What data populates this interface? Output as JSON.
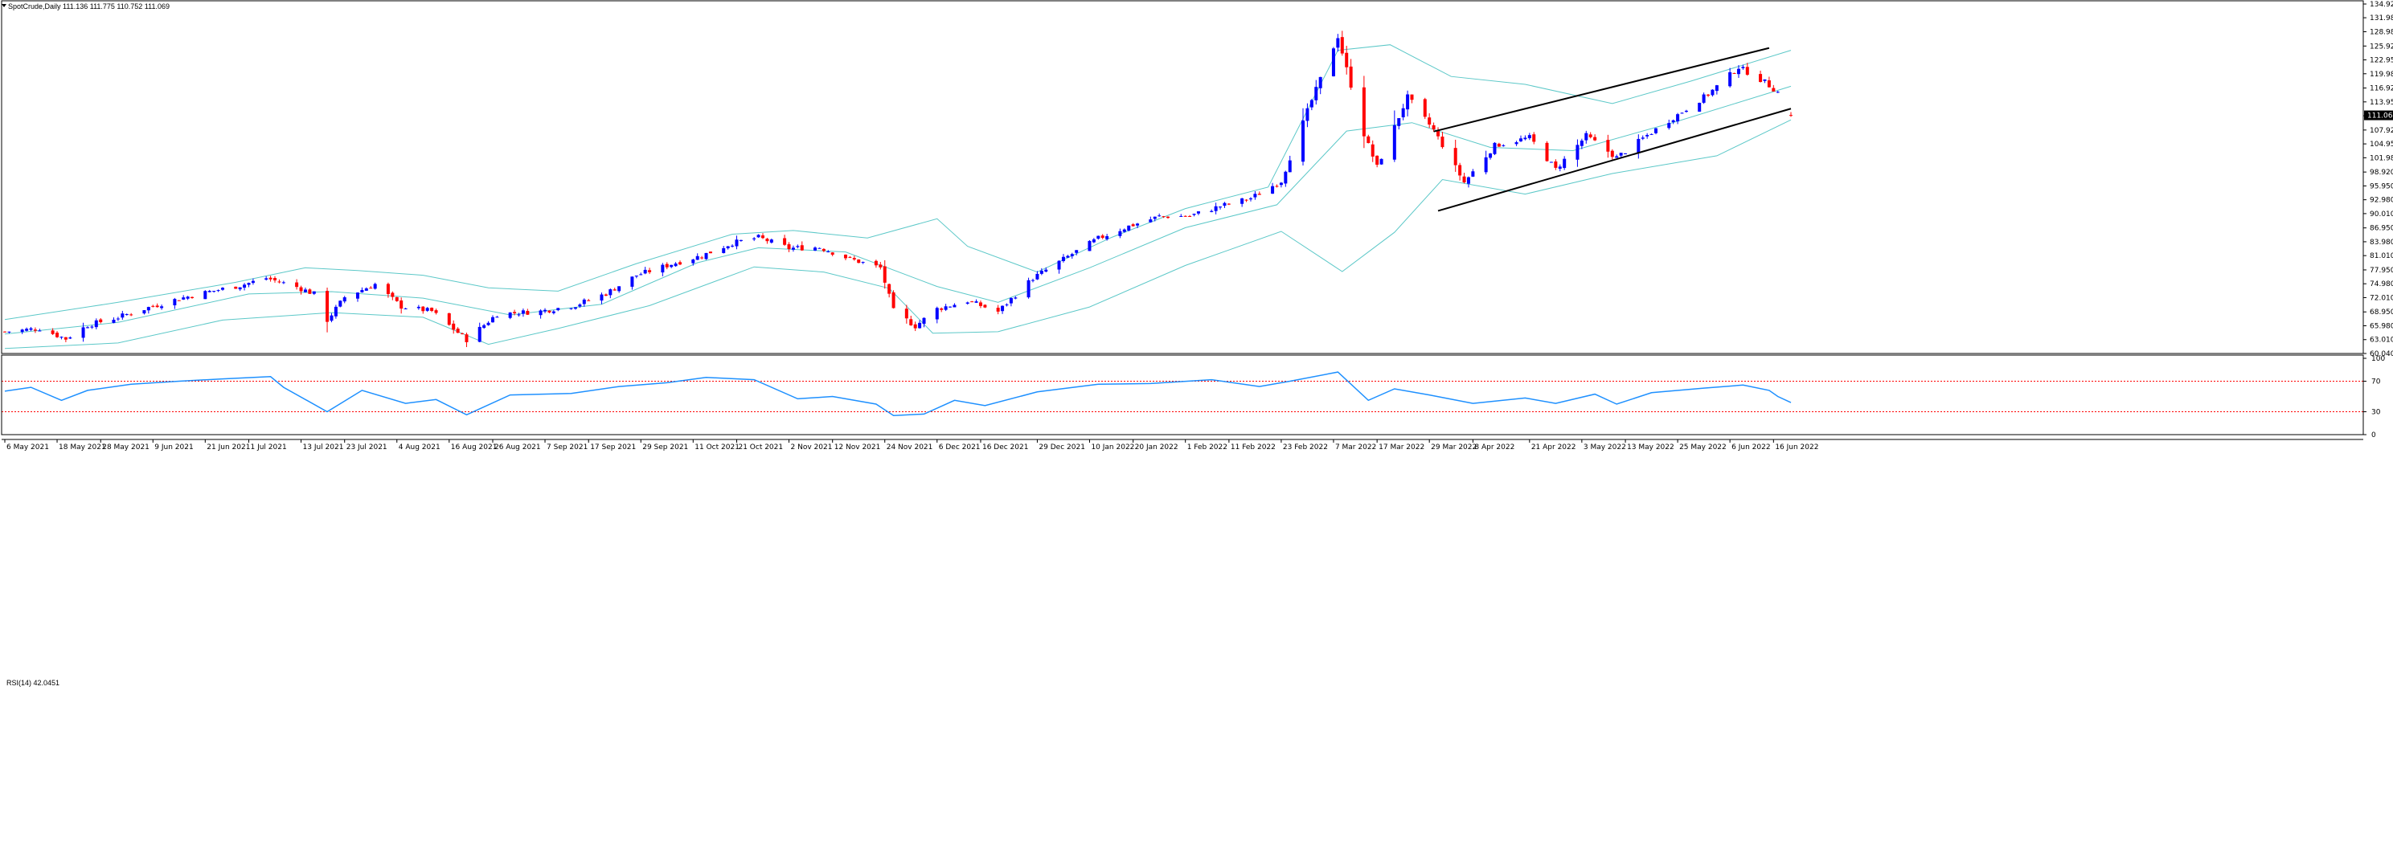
{
  "window": {
    "main_header": "SpotCrude,Daily  111.136 111.775 110.752 111.069",
    "rsi_header": "RSI(14) 42.0451"
  },
  "colors": {
    "bull_candle": "#0000ff",
    "bear_candle": "#ff0000",
    "bollinger": "#5cc8c8",
    "rsi_line": "#1e90ff",
    "rsi_levels": "#ff0000",
    "channel": "#000000",
    "current_price_tag": "#000000"
  },
  "chart_data": [
    {
      "type": "candlestick",
      "symbol": "SpotCrude",
      "timeframe": "Daily",
      "ohlc_last": {
        "open": 111.136,
        "high": 111.775,
        "low": 110.752,
        "close": 111.069
      },
      "current_price_label": "111.069",
      "y_axis": {
        "ylim": [
          60.04,
          134.92
        ],
        "tick_labels": [
          "134.920",
          "131.980",
          "128.980",
          "125.920",
          "122.950",
          "119.980",
          "116.920",
          "113.950",
          "110.980",
          "107.920",
          "104.950",
          "101.980",
          "98.920",
          "95.950",
          "92.980",
          "90.010",
          "86.950",
          "83.980",
          "81.010",
          "77.950",
          "74.980",
          "72.010",
          "68.950",
          "65.980",
          "63.010",
          "60.040"
        ],
        "ticks": [
          134.92,
          131.98,
          128.98,
          125.92,
          122.95,
          119.98,
          116.92,
          113.95,
          110.98,
          107.92,
          104.95,
          101.98,
          98.92,
          95.95,
          92.98,
          90.01,
          86.95,
          83.98,
          81.01,
          77.95,
          74.98,
          72.01,
          68.95,
          65.98,
          63.01,
          60.04
        ]
      },
      "x_axis": {
        "date_range": [
          "2021-05-06",
          "2022-06-20"
        ],
        "tick_dates": [
          "2021-05-06",
          "2021-05-18",
          "2021-05-28",
          "2021-06-09",
          "2021-06-21",
          "2021-07-01",
          "2021-07-13",
          "2021-07-23",
          "2021-08-04",
          "2021-08-16",
          "2021-08-26",
          "2021-09-07",
          "2021-09-17",
          "2021-09-29",
          "2021-10-11",
          "2021-10-21",
          "2021-11-02",
          "2021-11-12",
          "2021-11-24",
          "2021-12-06",
          "2021-12-16",
          "2021-12-29",
          "2022-01-10",
          "2022-01-20",
          "2022-02-01",
          "2022-02-11",
          "2022-02-23",
          "2022-03-07",
          "2022-03-17",
          "2022-03-29",
          "2022-04-08",
          "2022-04-21",
          "2022-05-03",
          "2022-05-13",
          "2022-05-25",
          "2022-06-06",
          "2022-06-16"
        ],
        "tick_labels": [
          "6 May 2021",
          "18 May 2021",
          "28 May 2021",
          "9 Jun 2021",
          "21 Jun 2021",
          "1 Jul 2021",
          "13 Jul 2021",
          "23 Jul 2021",
          "4 Aug 2021",
          "16 Aug 2021",
          "26 Aug 2021",
          "7 Sep 2021",
          "17 Sep 2021",
          "29 Sep 2021",
          "11 Oct 2021",
          "21 Oct 2021",
          "2 Nov 2021",
          "12 Nov 2021",
          "24 Nov 2021",
          "6 Dec 2021",
          "16 Dec 2021",
          "29 Dec 2021",
          "10 Jan 2022",
          "20 Jan 2022",
          "1 Feb 2022",
          "11 Feb 2022",
          "23 Feb 2022",
          "7 Mar 2022",
          "17 Mar 2022",
          "29 Mar 2022",
          "8 Apr 2022",
          "21 Apr 2022",
          "3 May 2022",
          "13 May 2022",
          "25 May 2022",
          "6 Jun 2022",
          "16 Jun 2022"
        ]
      },
      "close_path": [
        {
          "date": "2021-05-06",
          "close": 64.7
        },
        {
          "date": "2021-05-14",
          "close": 65.4
        },
        {
          "date": "2021-05-20",
          "close": 63.2
        },
        {
          "date": "2021-05-25",
          "close": 66.1
        },
        {
          "date": "2021-06-01",
          "close": 67.8
        },
        {
          "date": "2021-06-08",
          "close": 69.9
        },
        {
          "date": "2021-06-15",
          "close": 71.8
        },
        {
          "date": "2021-06-22",
          "close": 73.3
        },
        {
          "date": "2021-06-29",
          "close": 74.6
        },
        {
          "date": "2021-07-05",
          "close": 76.2
        },
        {
          "date": "2021-07-12",
          "close": 74.3
        },
        {
          "date": "2021-07-16",
          "close": 72.8
        },
        {
          "date": "2021-07-19",
          "close": 67.2
        },
        {
          "date": "2021-07-23",
          "close": 72.1
        },
        {
          "date": "2021-07-30",
          "close": 74.9
        },
        {
          "date": "2021-08-05",
          "close": 70.1
        },
        {
          "date": "2021-08-12",
          "close": 69.1
        },
        {
          "date": "2021-08-20",
          "close": 63.0
        },
        {
          "date": "2021-08-27",
          "close": 68.5
        },
        {
          "date": "2021-09-06",
          "close": 69.1
        },
        {
          "date": "2021-09-14",
          "close": 70.4
        },
        {
          "date": "2021-09-21",
          "close": 72.9
        },
        {
          "date": "2021-09-28",
          "close": 76.8
        },
        {
          "date": "2021-10-06",
          "close": 79.2
        },
        {
          "date": "2021-10-13",
          "close": 81.0
        },
        {
          "date": "2021-10-20",
          "close": 83.7
        },
        {
          "date": "2021-10-26",
          "close": 84.9
        },
        {
          "date": "2021-11-02",
          "close": 82.6
        },
        {
          "date": "2021-11-09",
          "close": 82.8
        },
        {
          "date": "2021-11-16",
          "close": 80.3
        },
        {
          "date": "2021-11-23",
          "close": 78.4
        },
        {
          "date": "2021-11-26",
          "close": 69.2
        },
        {
          "date": "2021-12-01",
          "close": 65.9
        },
        {
          "date": "2021-12-06",
          "close": 69.6
        },
        {
          "date": "2021-12-13",
          "close": 71.3
        },
        {
          "date": "2021-12-20",
          "close": 69.0
        },
        {
          "date": "2021-12-28",
          "close": 76.2
        },
        {
          "date": "2022-01-05",
          "close": 80.8
        },
        {
          "date": "2022-01-12",
          "close": 84.7
        },
        {
          "date": "2022-01-19",
          "close": 87.3
        },
        {
          "date": "2022-01-26",
          "close": 89.4
        },
        {
          "date": "2022-02-02",
          "close": 89.5
        },
        {
          "date": "2022-02-09",
          "close": 91.6
        },
        {
          "date": "2022-02-16",
          "close": 93.3
        },
        {
          "date": "2022-02-23",
          "close": 97.0
        },
        {
          "date": "2022-03-01",
          "close": 112.0
        },
        {
          "date": "2022-03-08",
          "close": 128.0
        },
        {
          "date": "2022-03-14",
          "close": 107.0
        },
        {
          "date": "2022-03-17",
          "close": 100.0
        },
        {
          "date": "2022-03-24",
          "close": 115.0
        },
        {
          "date": "2022-03-30",
          "close": 107.9
        },
        {
          "date": "2022-04-06",
          "close": 96.7
        },
        {
          "date": "2022-04-13",
          "close": 104.6
        },
        {
          "date": "2022-04-21",
          "close": 106.3
        },
        {
          "date": "2022-04-27",
          "close": 99.5
        },
        {
          "date": "2022-05-04",
          "close": 106.7
        },
        {
          "date": "2022-05-11",
          "close": 102.0
        },
        {
          "date": "2022-05-18",
          "close": 106.8
        },
        {
          "date": "2022-05-25",
          "close": 111.2
        },
        {
          "date": "2022-06-01",
          "close": 115.6
        },
        {
          "date": "2022-06-08",
          "close": 121.4
        },
        {
          "date": "2022-06-14",
          "close": 118.2
        },
        {
          "date": "2022-06-17",
          "close": 116.0
        },
        {
          "date": "2022-06-20",
          "close": 111.1
        }
      ],
      "bollinger_upper": [
        {
          "date": "2021-05-06",
          "value": 67.3
        },
        {
          "date": "2021-06-01",
          "value": 71.0
        },
        {
          "date": "2021-06-28",
          "value": 75.3
        },
        {
          "date": "2021-07-14",
          "value": 78.4
        },
        {
          "date": "2021-07-26",
          "value": 77.8
        },
        {
          "date": "2021-08-10",
          "value": 76.8
        },
        {
          "date": "2021-08-25",
          "value": 74.1
        },
        {
          "date": "2021-09-10",
          "value": 73.4
        },
        {
          "date": "2021-09-28",
          "value": 79.3
        },
        {
          "date": "2021-10-20",
          "value": 85.6
        },
        {
          "date": "2021-11-03",
          "value": 86.4
        },
        {
          "date": "2021-11-20",
          "value": 84.8
        },
        {
          "date": "2021-12-06",
          "value": 88.9
        },
        {
          "date": "2021-12-13",
          "value": 83.0
        },
        {
          "date": "2021-12-29",
          "value": 77.5
        },
        {
          "date": "2022-01-15",
          "value": 84.9
        },
        {
          "date": "2022-02-01",
          "value": 91.1
        },
        {
          "date": "2022-02-20",
          "value": 95.7
        },
        {
          "date": "2022-03-08",
          "value": 125.0
        },
        {
          "date": "2022-03-20",
          "value": 126.2
        },
        {
          "date": "2022-04-03",
          "value": 119.4
        },
        {
          "date": "2022-04-20",
          "value": 117.7
        },
        {
          "date": "2022-05-10",
          "value": 113.6
        },
        {
          "date": "2022-05-28",
          "value": 118.4
        },
        {
          "date": "2022-06-20",
          "value": 125.0
        }
      ],
      "bollinger_middle": [
        {
          "date": "2021-05-06",
          "value": 64.2
        },
        {
          "date": "2021-06-01",
          "value": 66.7
        },
        {
          "date": "2021-07-01",
          "value": 72.8
        },
        {
          "date": "2021-07-20",
          "value": 73.3
        },
        {
          "date": "2021-08-10",
          "value": 71.9
        },
        {
          "date": "2021-08-30",
          "value": 68.3
        },
        {
          "date": "2021-09-20",
          "value": 70.6
        },
        {
          "date": "2021-10-12",
          "value": 79.5
        },
        {
          "date": "2021-10-26",
          "value": 82.7
        },
        {
          "date": "2021-11-15",
          "value": 81.8
        },
        {
          "date": "2021-12-06",
          "value": 74.4
        },
        {
          "date": "2021-12-20",
          "value": 71.0
        },
        {
          "date": "2022-01-10",
          "value": 78.4
        },
        {
          "date": "2022-02-01",
          "value": 87.0
        },
        {
          "date": "2022-02-22",
          "value": 91.9
        },
        {
          "date": "2022-03-10",
          "value": 107.7
        },
        {
          "date": "2022-03-25",
          "value": 109.5
        },
        {
          "date": "2022-04-12",
          "value": 104.2
        },
        {
          "date": "2022-05-01",
          "value": 103.5
        },
        {
          "date": "2022-05-25",
          "value": 109.8
        },
        {
          "date": "2022-06-20",
          "value": 117.3
        }
      ],
      "bollinger_lower": [
        {
          "date": "2021-05-06",
          "value": 61.1
        },
        {
          "date": "2021-06-01",
          "value": 62.3
        },
        {
          "date": "2021-06-25",
          "value": 67.2
        },
        {
          "date": "2021-07-20",
          "value": 68.8
        },
        {
          "date": "2021-08-10",
          "value": 67.8
        },
        {
          "date": "2021-08-25",
          "value": 62.0
        },
        {
          "date": "2021-09-10",
          "value": 65.4
        },
        {
          "date": "2021-10-01",
          "value": 70.3
        },
        {
          "date": "2021-10-25",
          "value": 78.6
        },
        {
          "date": "2021-11-10",
          "value": 77.5
        },
        {
          "date": "2021-11-25",
          "value": 74.0
        },
        {
          "date": "2021-12-05",
          "value": 64.4
        },
        {
          "date": "2021-12-20",
          "value": 64.7
        },
        {
          "date": "2022-01-10",
          "value": 70.0
        },
        {
          "date": "2022-02-01",
          "value": 78.9
        },
        {
          "date": "2022-02-23",
          "value": 86.2
        },
        {
          "date": "2022-03-09",
          "value": 77.6
        },
        {
          "date": "2022-03-21",
          "value": 86.0
        },
        {
          "date": "2022-04-01",
          "value": 97.3
        },
        {
          "date": "2022-04-20",
          "value": 94.2
        },
        {
          "date": "2022-05-10",
          "value": 98.6
        },
        {
          "date": "2022-06-03",
          "value": 102.4
        },
        {
          "date": "2022-06-20",
          "value": 110.1
        }
      ],
      "trend_channel": {
        "upper": [
          {
            "date": "2022-03-30",
            "value": 107.6
          },
          {
            "date": "2022-06-15",
            "value": 125.5
          }
        ],
        "lower": [
          {
            "date": "2022-03-31",
            "value": 90.6
          },
          {
            "date": "2022-06-20",
            "value": 112.5
          }
        ]
      }
    },
    {
      "type": "line",
      "indicator": "RSI(14)",
      "last_value": 42.0451,
      "ylim": [
        0,
        100
      ],
      "tick_labels": [
        "100",
        "70",
        "30",
        "0"
      ],
      "ticks": [
        100,
        70,
        30,
        0
      ],
      "levels": [
        70,
        30
      ],
      "series": [
        {
          "date": "2021-05-06",
          "value": 57
        },
        {
          "date": "2021-05-12",
          "value": 62
        },
        {
          "date": "2021-05-19",
          "value": 45
        },
        {
          "date": "2021-05-25",
          "value": 58
        },
        {
          "date": "2021-06-04",
          "value": 66
        },
        {
          "date": "2021-06-15",
          "value": 70
        },
        {
          "date": "2021-06-25",
          "value": 73
        },
        {
          "date": "2021-07-06",
          "value": 76
        },
        {
          "date": "2021-07-09",
          "value": 62
        },
        {
          "date": "2021-07-19",
          "value": 30
        },
        {
          "date": "2021-07-27",
          "value": 58
        },
        {
          "date": "2021-08-06",
          "value": 41
        },
        {
          "date": "2021-08-13",
          "value": 46
        },
        {
          "date": "2021-08-20",
          "value": 26
        },
        {
          "date": "2021-08-30",
          "value": 52
        },
        {
          "date": "2021-09-13",
          "value": 54
        },
        {
          "date": "2021-09-24",
          "value": 63
        },
        {
          "date": "2021-10-05",
          "value": 68
        },
        {
          "date": "2021-10-14",
          "value": 75
        },
        {
          "date": "2021-10-25",
          "value": 72
        },
        {
          "date": "2021-11-04",
          "value": 47
        },
        {
          "date": "2021-11-12",
          "value": 50
        },
        {
          "date": "2021-11-22",
          "value": 40
        },
        {
          "date": "2021-11-26",
          "value": 25
        },
        {
          "date": "2021-12-03",
          "value": 27
        },
        {
          "date": "2021-12-10",
          "value": 45
        },
        {
          "date": "2021-12-17",
          "value": 38
        },
        {
          "date": "2021-12-29",
          "value": 56
        },
        {
          "date": "2022-01-12",
          "value": 66
        },
        {
          "date": "2022-01-24",
          "value": 67
        },
        {
          "date": "2022-02-07",
          "value": 72
        },
        {
          "date": "2022-02-18",
          "value": 63
        },
        {
          "date": "2022-02-25",
          "value": 70
        },
        {
          "date": "2022-03-08",
          "value": 82
        },
        {
          "date": "2022-03-15",
          "value": 45
        },
        {
          "date": "2022-03-21",
          "value": 60
        },
        {
          "date": "2022-03-29",
          "value": 52
        },
        {
          "date": "2022-04-08",
          "value": 41
        },
        {
          "date": "2022-04-20",
          "value": 48
        },
        {
          "date": "2022-04-27",
          "value": 41
        },
        {
          "date": "2022-05-06",
          "value": 53
        },
        {
          "date": "2022-05-11",
          "value": 40
        },
        {
          "date": "2022-05-19",
          "value": 55
        },
        {
          "date": "2022-05-31",
          "value": 61
        },
        {
          "date": "2022-06-09",
          "value": 65
        },
        {
          "date": "2022-06-15",
          "value": 58
        },
        {
          "date": "2022-06-17",
          "value": 50
        },
        {
          "date": "2022-06-20",
          "value": 42
        }
      ]
    }
  ]
}
